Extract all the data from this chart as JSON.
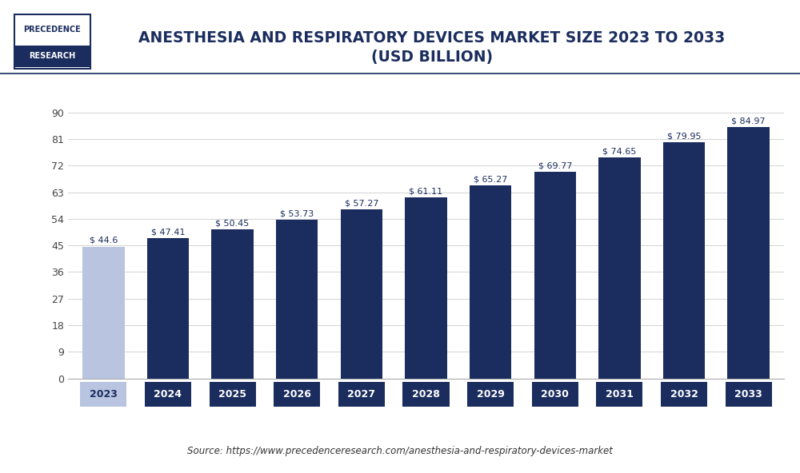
{
  "title_line1": "ANESTHESIA AND RESPIRATORY DEVICES MARKET SIZE 2023 TO 2033",
  "title_line2": "(USD BILLION)",
  "categories": [
    "2023",
    "2024",
    "2025",
    "2026",
    "2027",
    "2028",
    "2029",
    "2030",
    "2031",
    "2032",
    "2033"
  ],
  "values": [
    44.6,
    47.41,
    50.45,
    53.73,
    57.27,
    61.11,
    65.27,
    69.77,
    74.65,
    79.95,
    84.97
  ],
  "labels": [
    "$ 44.6",
    "$ 47.41",
    "$ 50.45",
    "$ 53.73",
    "$ 57.27",
    "$ 61.11",
    "$ 65.27",
    "$ 69.77",
    "$ 74.65",
    "$ 79.95",
    "$ 84.97"
  ],
  "bar_colors": [
    "#b8c4e0",
    "#1b2d5e",
    "#1b2d5e",
    "#1b2d5e",
    "#1b2d5e",
    "#1b2d5e",
    "#1b2d5e",
    "#1b2d5e",
    "#1b2d5e",
    "#1b2d5e",
    "#1b2d5e"
  ],
  "first_bar_color": "#b8c4e0",
  "dark_bar_color": "#1b2d5e",
  "yticks": [
    0,
    9,
    18,
    27,
    36,
    45,
    54,
    63,
    72,
    81,
    90
  ],
  "ylim": [
    0,
    96
  ],
  "background_color": "#ffffff",
  "grid_color": "#cccccc",
  "title_color": "#1b2d5e",
  "source_text": "Source: https://www.precedenceresearch.com/anesthesia-and-respiratory-devices-market",
  "logo_bg": "#1b2d5e",
  "logo_border": "#1b2d5e",
  "xtick_first_bg": "#b8c4e0",
  "xtick_first_fg": "#1b2d5e",
  "xtick_other_bg": "#1b2d5e",
  "xtick_other_fg": "#ffffff",
  "header_line_color": "#1b2d5e",
  "bar_label_color": "#1b2d5e"
}
